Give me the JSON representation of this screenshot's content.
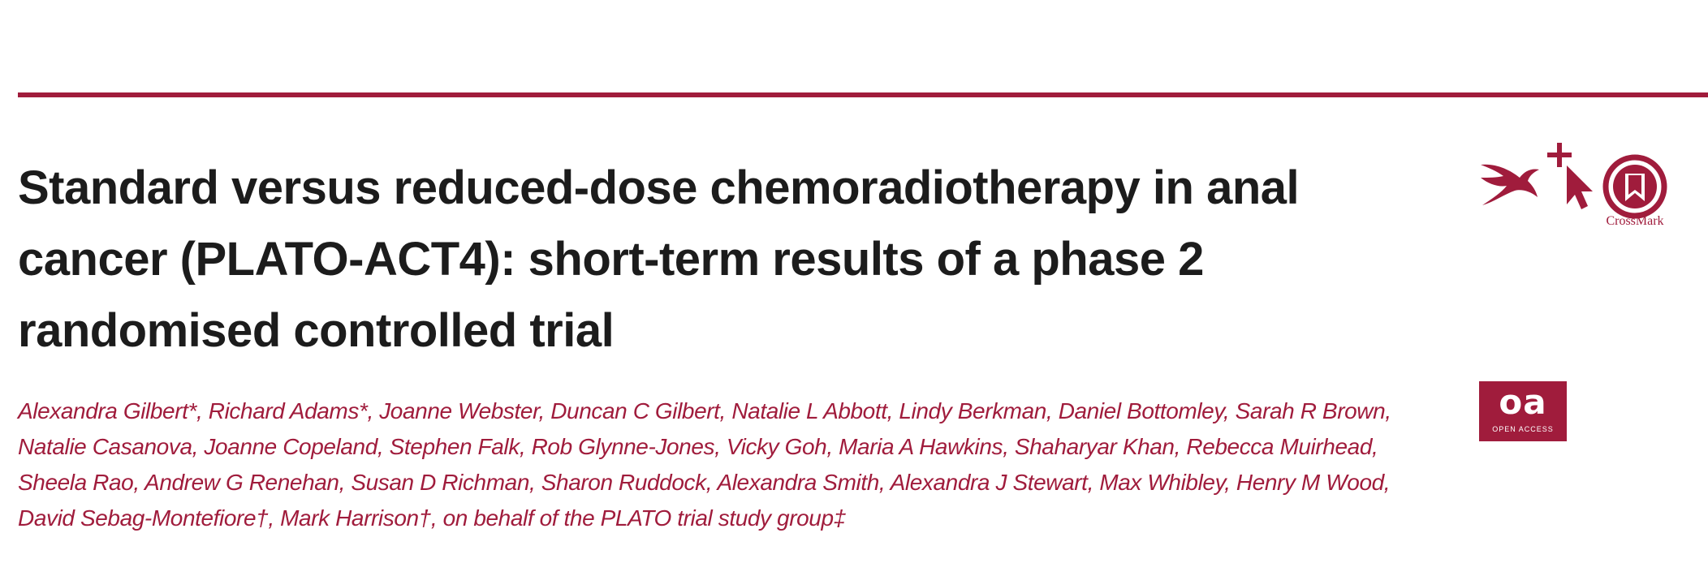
{
  "article": {
    "title_lines": [
      "Standard versus reduced-dose chemoradiotherapy in anal",
      "cancer (PLATO-ACT4): short-term results of a phase 2",
      "randomised controlled trial"
    ],
    "author_lines": [
      "Alexandra Gilbert*, Richard Adams*, Joanne Webster, Duncan C Gilbert, Natalie L Abbott, Lindy Berkman, Daniel Bottomley, Sarah R Brown,",
      "Natalie Casanova, Joanne Copeland, Stephen Falk, Rob Glynne-Jones, Vicky Goh, Maria A Hawkins, Shaharyar Khan, Rebecca Muirhead,",
      "Sheela Rao, Andrew G Renehan, Susan D Richman, Sharon Ruddock, Alexandra Smith, Alexandra J Stewart, Max Whibley, Henry M Wood,",
      "David Sebag-Montefiore†, Mark Harrison†, on behalf of the PLATO trial study group‡"
    ]
  },
  "badges": {
    "crossmark_label": "CrossMark",
    "open_access_short": "oa",
    "open_access_label": "OPEN ACCESS"
  },
  "theme": {
    "accent": "#a01c3c",
    "title_color": "#1c1c1c",
    "background": "#ffffff"
  },
  "icons": [
    "swift-icon",
    "cursor-plus-icon",
    "crossmark-icon",
    "open-access-icon"
  ]
}
